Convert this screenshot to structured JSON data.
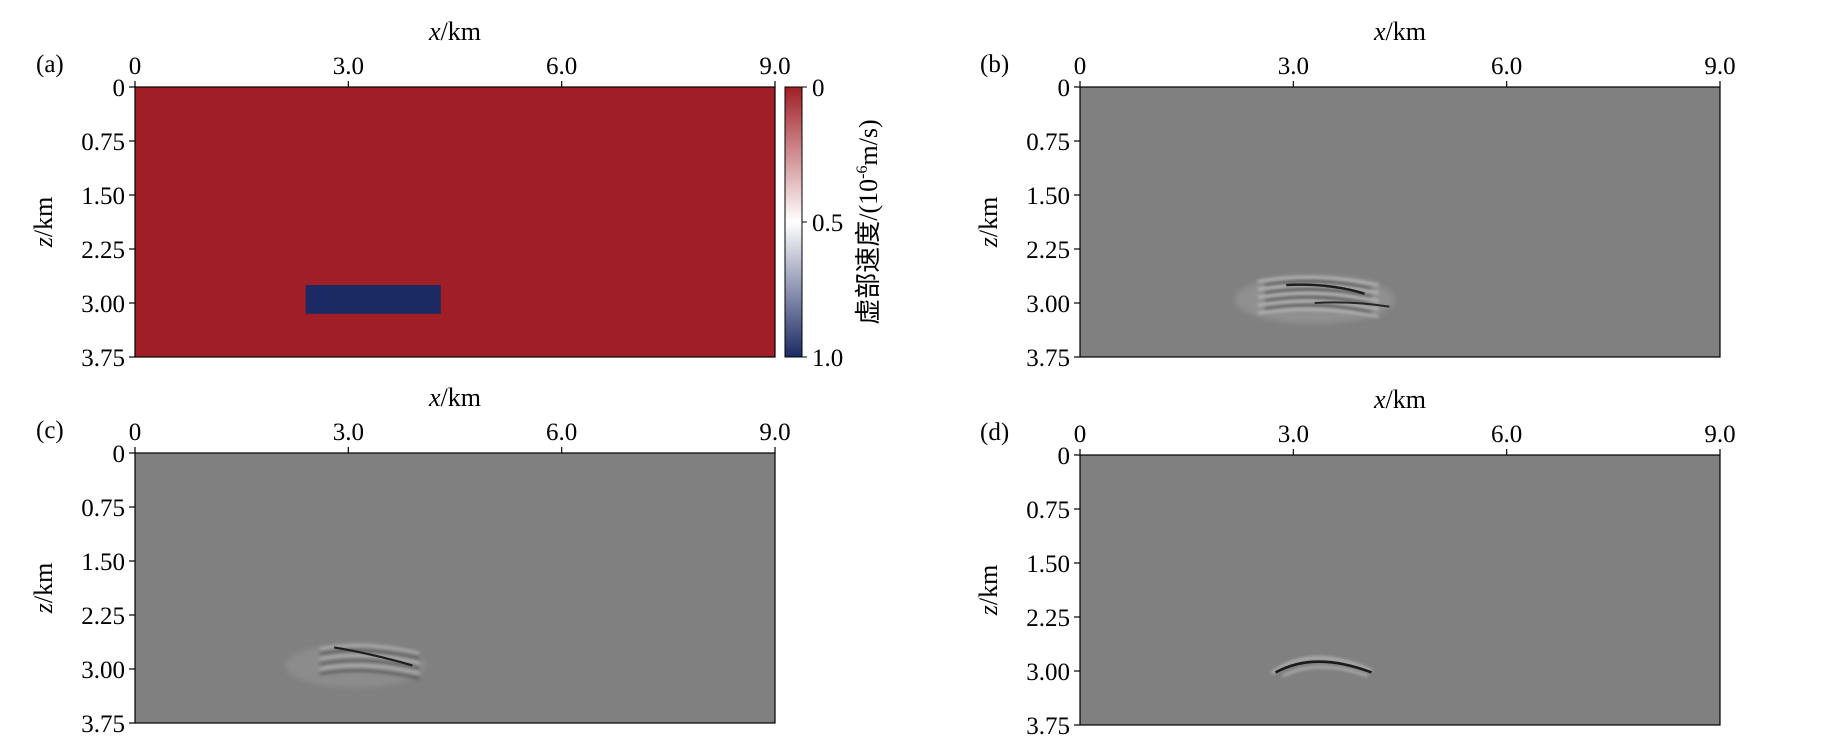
{
  "chart_data": [
    {
      "panel": "(a)",
      "type": "heatmap",
      "xlabel_var": "x",
      "xlabel_unit": "/km",
      "ylabel_var": "z",
      "ylabel_unit": "/km",
      "xticks": [
        "0",
        "3.0",
        "6.0",
        "9.0"
      ],
      "xtick_values": [
        0,
        3,
        6,
        9
      ],
      "yticks": [
        "0",
        "0.75",
        "1.50",
        "2.25",
        "3.00",
        "3.75"
      ],
      "ytick_values": [
        0,
        0.75,
        1.5,
        2.25,
        3.0,
        3.75
      ],
      "xlim": [
        0,
        9
      ],
      "ylim": [
        0,
        3.75
      ],
      "background_value": 0,
      "anomalies": [
        {
          "x": [
            2.4,
            4.3
          ],
          "z": [
            2.75,
            3.15
          ],
          "value": 1.0
        }
      ],
      "colorbar": {
        "label_main": "虚部速度/(10",
        "label_sup": "-6",
        "label_tail": "m/s)",
        "ticks": [
          "0",
          "0.5",
          "1.0"
        ],
        "tick_values": [
          0,
          0.5,
          1.0
        ],
        "range": [
          0,
          1.0
        ],
        "colors": [
          "#a01f26",
          "#ffffff",
          "#1c2a64"
        ]
      }
    },
    {
      "panel": "(b)",
      "type": "heatmap",
      "xlabel_var": "x",
      "xlabel_unit": "/km",
      "ylabel_var": "z",
      "ylabel_unit": "/km",
      "xticks": [
        "0",
        "3.0",
        "6.0",
        "9.0"
      ],
      "xtick_values": [
        0,
        3,
        6,
        9
      ],
      "yticks": [
        "0",
        "0.75",
        "1.50",
        "2.25",
        "3.00",
        "3.75"
      ],
      "ytick_values": [
        0,
        0.75,
        1.5,
        2.25,
        3.0,
        3.75
      ],
      "xlim": [
        0,
        9
      ],
      "ylim": [
        0,
        3.75
      ],
      "image": "grayscale seismic image, scattered energy around x=2.3–4.4 km, z=2.6–3.2 km"
    },
    {
      "panel": "(c)",
      "type": "heatmap",
      "xlabel_var": "x",
      "xlabel_unit": "/km",
      "ylabel_var": "z",
      "ylabel_unit": "/km",
      "xticks": [
        "0",
        "3.0",
        "6.0",
        "9.0"
      ],
      "xtick_values": [
        0,
        3,
        6,
        9
      ],
      "yticks": [
        "0",
        "0.75",
        "1.50",
        "2.25",
        "3.00",
        "3.75"
      ],
      "ytick_values": [
        0,
        0.75,
        1.5,
        2.25,
        3.0,
        3.75
      ],
      "xlim": [
        0,
        9
      ],
      "ylim": [
        0,
        3.75
      ],
      "image": "grayscale seismic image, focused events around x=2.5–4.1 km, z=2.7–3.2 km"
    },
    {
      "panel": "(d)",
      "type": "heatmap",
      "xlabel_var": "x",
      "xlabel_unit": "/km",
      "ylabel_var": "z",
      "ylabel_unit": "/km",
      "xticks": [
        "0",
        "3.0",
        "6.0",
        "9.0"
      ],
      "xtick_values": [
        0,
        3,
        6,
        9
      ],
      "yticks": [
        "0",
        "0.75",
        "1.50",
        "2.25",
        "3.00",
        "3.75"
      ],
      "ytick_values": [
        0,
        0.75,
        1.5,
        2.25,
        3.0,
        3.75
      ],
      "xlim": [
        0,
        9
      ],
      "ylim": [
        0,
        3.75
      ],
      "image": "grayscale seismic image, single curved reflector around x=2.7–4.1 km, z=2.75–3.05 km"
    }
  ],
  "colors": {
    "model_background": "#a01f26",
    "anomaly": "#1c2a64",
    "seismic_background": "#808080"
  }
}
